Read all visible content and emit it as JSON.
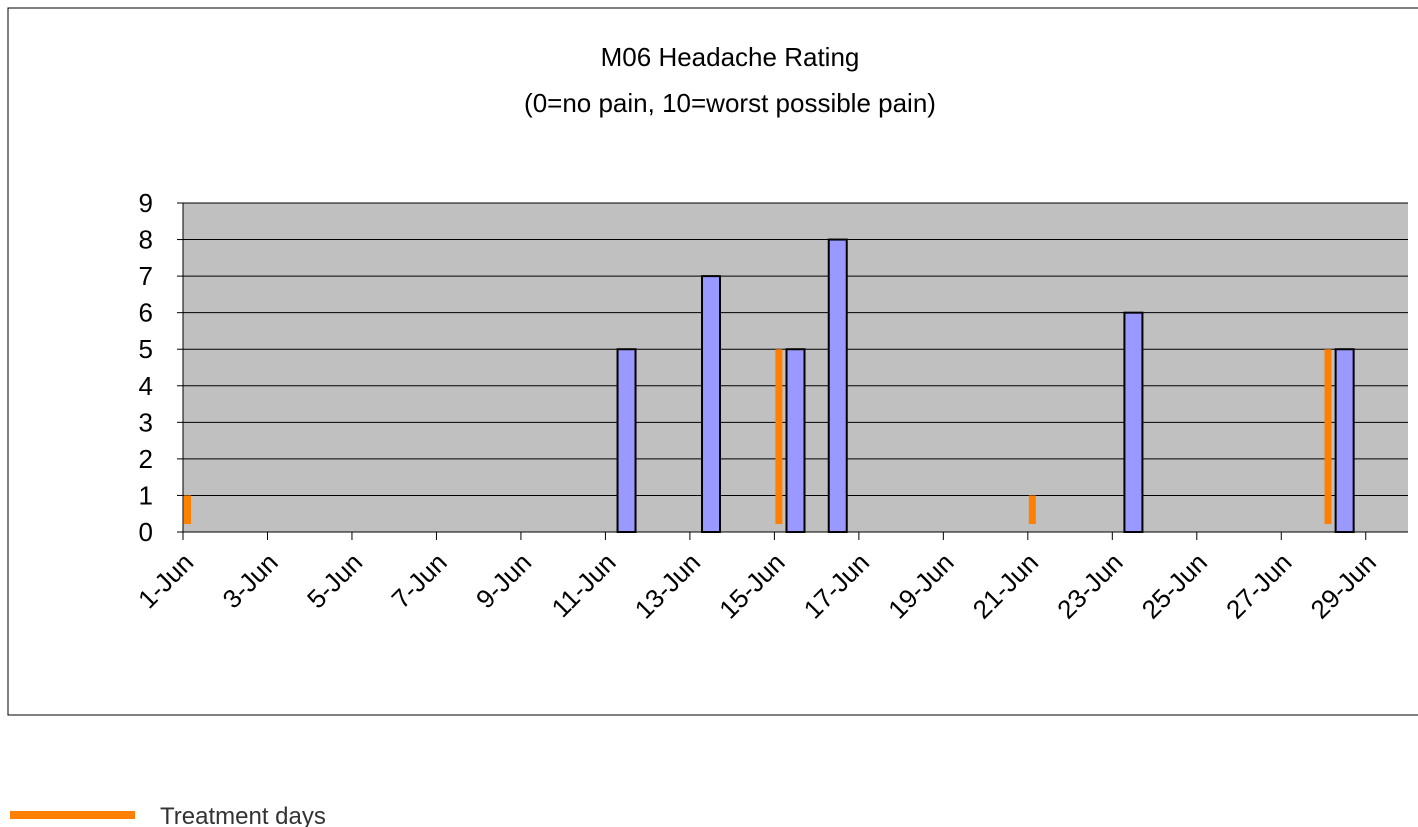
{
  "chart_data": {
    "type": "bar",
    "title": "M06 Headache Rating",
    "subtitle": "(0=no pain, 10=worst possible pain)",
    "categories": [
      "1-Jun",
      null,
      "3-Jun",
      null,
      "5-Jun",
      null,
      "7-Jun",
      null,
      "9-Jun",
      null,
      "11-Jun",
      null,
      "13-Jun",
      null,
      "15-Jun",
      null,
      "17-Jun",
      null,
      "19-Jun",
      null,
      "21-Jun",
      null,
      "23-Jun",
      null,
      "25-Jun",
      null,
      "27-Jun",
      null,
      "29-Jun"
    ],
    "series": [
      {
        "color": "#9999ff",
        "values": [
          null,
          null,
          null,
          null,
          null,
          null,
          null,
          null,
          null,
          null,
          5,
          null,
          7,
          null,
          5,
          8,
          null,
          null,
          null,
          null,
          null,
          null,
          6,
          null,
          null,
          null,
          null,
          5,
          null
        ]
      },
      {
        "name": "Treatment days",
        "color": "#ff8000",
        "values": [
          1,
          null,
          null,
          null,
          null,
          null,
          null,
          null,
          null,
          null,
          null,
          null,
          null,
          null,
          5,
          null,
          null,
          null,
          null,
          null,
          1,
          null,
          null,
          null,
          null,
          null,
          null,
          5,
          null
        ]
      }
    ],
    "ylim": [
      0,
      9
    ],
    "yticks": [
      0,
      1,
      2,
      3,
      4,
      5,
      6,
      7,
      8,
      9
    ],
    "grid": true,
    "legend": "bottom-left"
  }
}
